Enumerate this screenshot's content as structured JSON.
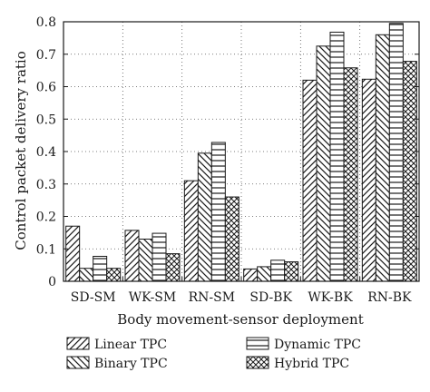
{
  "chart_data": {
    "type": "bar",
    "title": "",
    "xlabel": "Body movement-sensor deployment",
    "ylabel": "Control packet delivery ratio",
    "ylim": [
      0,
      0.8
    ],
    "yticks": [
      "0",
      "0.1",
      "0.2",
      "0.3",
      "0.4",
      "0.5",
      "0.6",
      "0.7",
      "0.8"
    ],
    "grid": "dotted",
    "legend_position": "bottom",
    "categories": [
      "SD-SM",
      "WK-SM",
      "RN-SM",
      "SD-BK",
      "WK-BK",
      "RN-BK"
    ],
    "series": [
      {
        "name": "Linear TPC",
        "pattern": "diagonal-hatch",
        "values": [
          0.17,
          0.157,
          0.31,
          0.038,
          0.62,
          0.623
        ]
      },
      {
        "name": "Binary TPC",
        "pattern": "back-diagonal-hatch",
        "values": [
          0.04,
          0.13,
          0.395,
          0.045,
          0.725,
          0.76
        ]
      },
      {
        "name": "Dynamic TPC",
        "pattern": "horizontal-lines",
        "values": [
          0.077,
          0.148,
          0.428,
          0.065,
          0.768,
          0.795
        ]
      },
      {
        "name": "Hybrid TPC",
        "pattern": "crosshatch",
        "values": [
          0.04,
          0.085,
          0.26,
          0.06,
          0.658,
          0.678
        ]
      }
    ]
  }
}
